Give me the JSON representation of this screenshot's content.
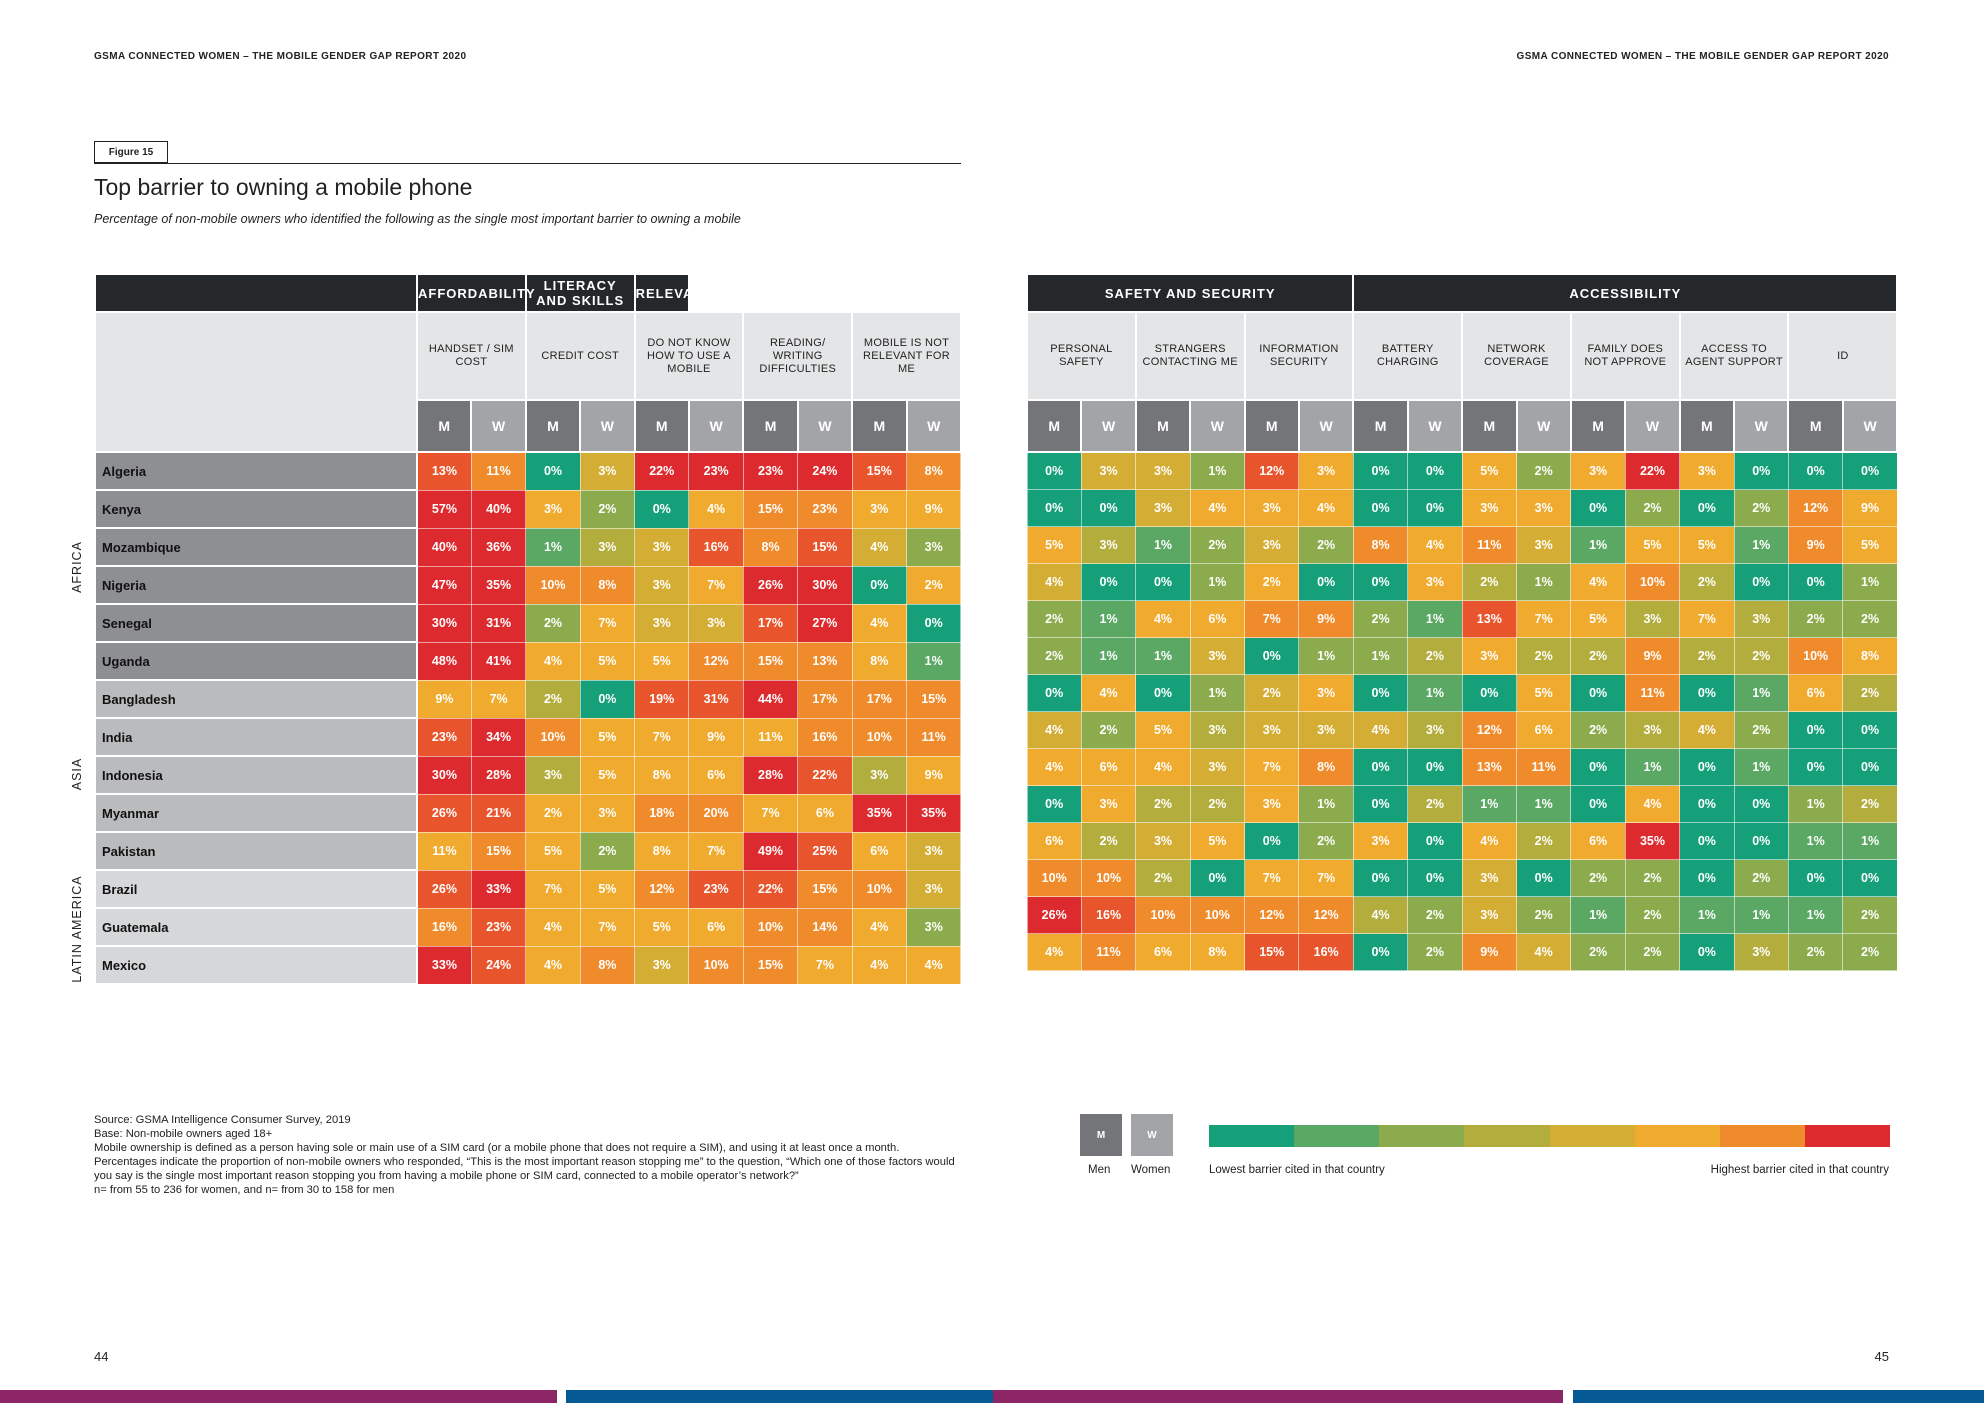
{
  "header": {
    "left": "GSMA CONNECTED WOMEN – THE MOBILE GENDER GAP REPORT 2020",
    "right": "GSMA CONNECTED WOMEN – THE MOBILE GENDER GAP REPORT 2020"
  },
  "figure": {
    "label": "Figure 15",
    "title": "Top barrier to owning a mobile phone",
    "subtitle": "Percentage of non-mobile owners who identified the following as the single most important barrier to owning a mobile"
  },
  "groups_left": [
    "AFFORDABILITY",
    "LITERACY AND SKILLS",
    "RELEVANCE"
  ],
  "groups_right": [
    "SAFETY AND SECURITY",
    "ACCESSIBILITY"
  ],
  "barriers_left": [
    "HANDSET / SIM COST",
    "CREDIT COST",
    "DO NOT KNOW HOW TO USE A MOBILE",
    "READING/ WRITING DIFFICULTIES",
    "MOBILE IS NOT RELEVANT FOR ME"
  ],
  "barriers_right": [
    "PERSONAL SAFETY",
    "STRANGERS CONTACTING ME",
    "INFORMATION SECURITY",
    "BATTERY CHARGING",
    "NETWORK COVERAGE",
    "FAMILY DOES NOT APPROVE",
    "ACCESS TO AGENT SUPPORT",
    "ID"
  ],
  "gender": {
    "m": "M",
    "w": "W"
  },
  "regions": [
    "AFRICA",
    "ASIA",
    "LATIN AMERICA"
  ],
  "palette": [
    "#15a07a",
    "#5aa864",
    "#8bab4d",
    "#b2ad3c",
    "#d4ad35",
    "#f0aa2e",
    "#ef8b2b",
    "#e8552c",
    "#dd2a2e"
  ],
  "countries": [
    {
      "name": "Algeria",
      "region": "africa",
      "left": [
        "13%",
        "11%",
        "0%",
        "3%",
        "22%",
        "23%",
        "23%",
        "24%",
        "15%",
        "8%"
      ],
      "right": [
        "0%",
        "3%",
        "3%",
        "1%",
        "12%",
        "3%",
        "0%",
        "0%",
        "5%",
        "2%",
        "3%",
        "22%",
        "3%",
        "0%",
        "0%",
        "0%"
      ],
      "left_lvl": [
        7,
        6,
        0,
        4,
        8,
        8,
        8,
        8,
        7,
        6
      ],
      "right_lvl": [
        0,
        4,
        4,
        2,
        7,
        5,
        0,
        0,
        5,
        2,
        5,
        8,
        5,
        0,
        0,
        0
      ]
    },
    {
      "name": "Kenya",
      "region": "africa",
      "left": [
        "57%",
        "40%",
        "3%",
        "2%",
        "0%",
        "4%",
        "15%",
        "23%",
        "3%",
        "9%"
      ],
      "right": [
        "0%",
        "0%",
        "3%",
        "4%",
        "3%",
        "4%",
        "0%",
        "0%",
        "3%",
        "3%",
        "0%",
        "2%",
        "0%",
        "2%",
        "12%",
        "9%"
      ],
      "left_lvl": [
        8,
        8,
        5,
        2,
        0,
        5,
        6,
        6,
        5,
        5
      ],
      "right_lvl": [
        0,
        0,
        4,
        5,
        5,
        5,
        0,
        0,
        5,
        5,
        0,
        2,
        0,
        2,
        6,
        5
      ]
    },
    {
      "name": "Mozambique",
      "region": "africa",
      "left": [
        "40%",
        "36%",
        "1%",
        "3%",
        "3%",
        "16%",
        "8%",
        "15%",
        "4%",
        "3%"
      ],
      "right": [
        "5%",
        "3%",
        "1%",
        "2%",
        "3%",
        "2%",
        "8%",
        "4%",
        "11%",
        "3%",
        "1%",
        "5%",
        "5%",
        "1%",
        "9%",
        "5%"
      ],
      "left_lvl": [
        8,
        8,
        1,
        3,
        4,
        7,
        6,
        7,
        4,
        2
      ],
      "right_lvl": [
        5,
        3,
        1,
        2,
        4,
        2,
        6,
        5,
        6,
        4,
        1,
        5,
        5,
        1,
        6,
        5
      ]
    },
    {
      "name": "Nigeria",
      "region": "africa",
      "left": [
        "47%",
        "35%",
        "10%",
        "8%",
        "3%",
        "7%",
        "26%",
        "30%",
        "0%",
        "2%"
      ],
      "right": [
        "4%",
        "0%",
        "0%",
        "1%",
        "2%",
        "0%",
        "0%",
        "3%",
        "2%",
        "1%",
        "4%",
        "10%",
        "2%",
        "0%",
        "0%",
        "1%"
      ],
      "left_lvl": [
        8,
        8,
        6,
        6,
        4,
        5,
        8,
        8,
        0,
        5
      ],
      "right_lvl": [
        4,
        0,
        0,
        2,
        5,
        0,
        0,
        5,
        3,
        2,
        5,
        6,
        3,
        0,
        0,
        2
      ]
    },
    {
      "name": "Senegal",
      "region": "africa",
      "left": [
        "30%",
        "31%",
        "2%",
        "7%",
        "3%",
        "3%",
        "17%",
        "27%",
        "4%",
        "0%"
      ],
      "right": [
        "2%",
        "1%",
        "4%",
        "6%",
        "7%",
        "9%",
        "2%",
        "1%",
        "13%",
        "7%",
        "5%",
        "3%",
        "7%",
        "3%",
        "2%",
        "2%"
      ],
      "left_lvl": [
        8,
        8,
        2,
        5,
        4,
        4,
        7,
        8,
        5,
        0
      ],
      "right_lvl": [
        2,
        1,
        5,
        5,
        6,
        6,
        2,
        1,
        7,
        5,
        5,
        3,
        5,
        3,
        2,
        2
      ]
    },
    {
      "name": "Uganda",
      "region": "africa",
      "left": [
        "48%",
        "41%",
        "4%",
        "5%",
        "5%",
        "12%",
        "15%",
        "13%",
        "8%",
        "1%"
      ],
      "right": [
        "2%",
        "1%",
        "1%",
        "3%",
        "0%",
        "1%",
        "1%",
        "2%",
        "3%",
        "2%",
        "2%",
        "9%",
        "2%",
        "2%",
        "10%",
        "8%"
      ],
      "left_lvl": [
        8,
        8,
        5,
        5,
        5,
        6,
        6,
        6,
        5,
        1
      ],
      "right_lvl": [
        2,
        1,
        1,
        4,
        0,
        2,
        2,
        3,
        5,
        3,
        3,
        6,
        3,
        3,
        6,
        5
      ]
    },
    {
      "name": "Bangladesh",
      "region": "asia",
      "left": [
        "9%",
        "7%",
        "2%",
        "0%",
        "19%",
        "31%",
        "44%",
        "17%",
        "17%",
        "15%"
      ],
      "right": [
        "0%",
        "4%",
        "0%",
        "1%",
        "2%",
        "3%",
        "0%",
        "1%",
        "0%",
        "5%",
        "0%",
        "11%",
        "0%",
        "1%",
        "6%",
        "2%"
      ],
      "left_lvl": [
        5,
        5,
        3,
        0,
        7,
        7,
        8,
        6,
        6,
        6
      ],
      "right_lvl": [
        0,
        5,
        0,
        2,
        4,
        5,
        0,
        1,
        0,
        5,
        0,
        6,
        0,
        1,
        5,
        3
      ]
    },
    {
      "name": "India",
      "region": "asia",
      "left": [
        "23%",
        "34%",
        "10%",
        "5%",
        "7%",
        "9%",
        "11%",
        "16%",
        "10%",
        "11%"
      ],
      "right": [
        "4%",
        "2%",
        "5%",
        "3%",
        "3%",
        "3%",
        "4%",
        "3%",
        "12%",
        "6%",
        "2%",
        "3%",
        "4%",
        "2%",
        "0%",
        "0%"
      ],
      "left_lvl": [
        7,
        8,
        6,
        5,
        5,
        5,
        5,
        6,
        6,
        6
      ],
      "right_lvl": [
        4,
        2,
        5,
        3,
        4,
        4,
        4,
        3,
        6,
        5,
        2,
        3,
        4,
        2,
        0,
        0
      ]
    },
    {
      "name": "Indonesia",
      "region": "asia",
      "left": [
        "30%",
        "28%",
        "3%",
        "5%",
        "8%",
        "6%",
        "28%",
        "22%",
        "3%",
        "9%"
      ],
      "right": [
        "4%",
        "6%",
        "4%",
        "3%",
        "7%",
        "8%",
        "0%",
        "0%",
        "13%",
        "11%",
        "0%",
        "1%",
        "0%",
        "1%",
        "0%",
        "0%"
      ],
      "left_lvl": [
        8,
        8,
        3,
        5,
        5,
        5,
        8,
        7,
        3,
        5
      ],
      "right_lvl": [
        5,
        5,
        5,
        4,
        5,
        6,
        0,
        0,
        6,
        6,
        0,
        1,
        0,
        1,
        0,
        0
      ]
    },
    {
      "name": "Myanmar",
      "region": "asia",
      "left": [
        "26%",
        "21%",
        "2%",
        "3%",
        "18%",
        "20%",
        "7%",
        "6%",
        "35%",
        "35%"
      ],
      "right": [
        "0%",
        "3%",
        "2%",
        "2%",
        "3%",
        "1%",
        "0%",
        "2%",
        "1%",
        "1%",
        "0%",
        "4%",
        "0%",
        "0%",
        "1%",
        "2%"
      ],
      "left_lvl": [
        7,
        7,
        5,
        5,
        6,
        6,
        5,
        5,
        8,
        8
      ],
      "right_lvl": [
        0,
        5,
        3,
        3,
        5,
        2,
        0,
        3,
        1,
        1,
        0,
        5,
        0,
        0,
        2,
        3
      ]
    },
    {
      "name": "Pakistan",
      "region": "asia",
      "left": [
        "11%",
        "15%",
        "5%",
        "2%",
        "8%",
        "7%",
        "49%",
        "25%",
        "6%",
        "3%"
      ],
      "right": [
        "6%",
        "2%",
        "3%",
        "5%",
        "0%",
        "2%",
        "3%",
        "0%",
        "4%",
        "2%",
        "6%",
        "35%",
        "0%",
        "0%",
        "1%",
        "1%"
      ],
      "left_lvl": [
        5,
        6,
        5,
        2,
        5,
        5,
        8,
        7,
        5,
        4
      ],
      "right_lvl": [
        5,
        3,
        4,
        5,
        0,
        2,
        5,
        0,
        5,
        3,
        5,
        8,
        0,
        0,
        1,
        1
      ]
    },
    {
      "name": "Brazil",
      "region": "latam",
      "left": [
        "26%",
        "33%",
        "7%",
        "5%",
        "12%",
        "23%",
        "22%",
        "15%",
        "10%",
        "3%"
      ],
      "right": [
        "10%",
        "10%",
        "2%",
        "0%",
        "7%",
        "7%",
        "0%",
        "0%",
        "3%",
        "0%",
        "2%",
        "2%",
        "0%",
        "2%",
        "0%",
        "0%"
      ],
      "left_lvl": [
        7,
        8,
        5,
        5,
        6,
        7,
        7,
        6,
        6,
        4
      ],
      "right_lvl": [
        6,
        6,
        3,
        0,
        5,
        5,
        0,
        0,
        4,
        0,
        2,
        2,
        0,
        2,
        0,
        0
      ]
    },
    {
      "name": "Guatemala",
      "region": "latam",
      "left": [
        "16%",
        "23%",
        "4%",
        "7%",
        "5%",
        "6%",
        "10%",
        "14%",
        "4%",
        "3%"
      ],
      "right": [
        "26%",
        "16%",
        "10%",
        "10%",
        "12%",
        "12%",
        "4%",
        "2%",
        "3%",
        "2%",
        "1%",
        "2%",
        "1%",
        "1%",
        "1%",
        "2%"
      ],
      "left_lvl": [
        6,
        7,
        5,
        5,
        5,
        5,
        6,
        6,
        5,
        2
      ],
      "right_lvl": [
        8,
        7,
        6,
        6,
        6,
        6,
        3,
        2,
        4,
        2,
        1,
        2,
        1,
        1,
        1,
        2
      ]
    },
    {
      "name": "Mexico",
      "region": "latam",
      "left": [
        "33%",
        "24%",
        "4%",
        "8%",
        "3%",
        "10%",
        "15%",
        "7%",
        "4%",
        "4%"
      ],
      "right": [
        "4%",
        "11%",
        "6%",
        "8%",
        "15%",
        "16%",
        "0%",
        "2%",
        "9%",
        "4%",
        "2%",
        "2%",
        "0%",
        "3%",
        "2%",
        "2%"
      ],
      "left_lvl": [
        8,
        7,
        5,
        6,
        4,
        6,
        6,
        5,
        5,
        5
      ],
      "right_lvl": [
        5,
        6,
        5,
        5,
        7,
        7,
        0,
        2,
        6,
        4,
        2,
        2,
        0,
        3,
        2,
        2
      ]
    }
  ],
  "notes": [
    "Source: GSMA Intelligence Consumer Survey, 2019",
    "Base: Non-mobile owners aged 18+",
    "Mobile ownership is defined as a person having sole or main use of a SIM card (or a mobile phone that does not require a SIM), and using it at least once a month.",
    "Percentages indicate the proportion of non-mobile owners who responded, “This is the most important reason stopping me” to the question, “Which one of those factors would you say is the single most important reason stopping you from having a mobile phone or SIM card, connected to a mobile operator’s network?”",
    "n= from 55 to 236 for women, and n= from 30 to 158 for men"
  ],
  "legend": {
    "men_box": "M",
    "women_box": "W",
    "men_label": "Men",
    "women_label": "Women",
    "low_label": "Lowest barrier cited in that country",
    "high_label": "Highest barrier cited in that country",
    "gradient": [
      "#15a07a",
      "#5aa864",
      "#8bab4d",
      "#b2ad3c",
      "#d4ad35",
      "#f0aa2e",
      "#ef8b2b",
      "#dd2a2e"
    ]
  },
  "pages": {
    "left": "44",
    "right": "45"
  },
  "bottom_bar_colors": [
    "#8c2566",
    "#055a96",
    "#8c2566",
    "#055a96"
  ]
}
